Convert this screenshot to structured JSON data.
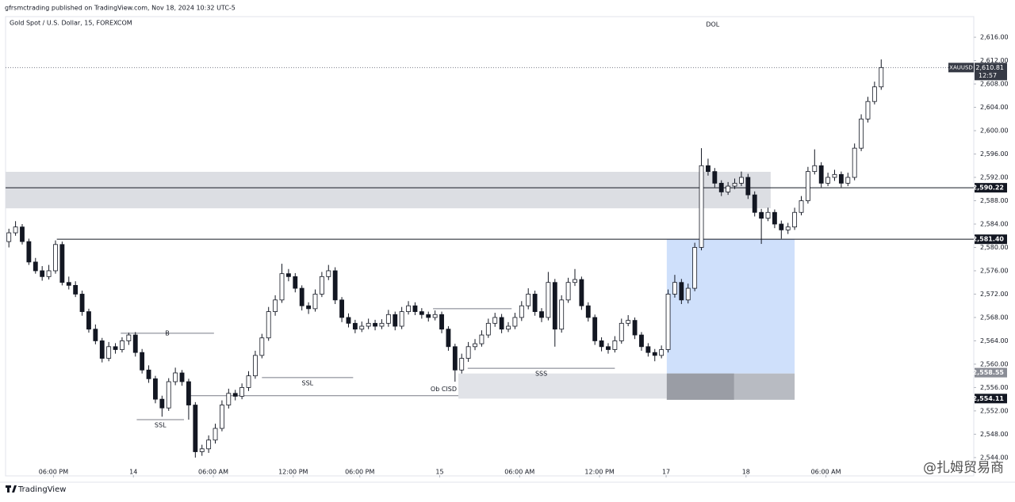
{
  "chart_data": {
    "type": "candlestick",
    "header": "gfrsmctrading published on TradingView.com, Nov 18, 2024 10:32 UTC-5",
    "title": "Gold Spot / U.S. Dollar, 15, FOREXCOM",
    "footer_brand": "TradingView",
    "watermark": "@扎姆贸易商",
    "up_color": "#ffffff",
    "down_color": "#131722",
    "wick_color": "#131722",
    "x": [
      0,
      1,
      2,
      3,
      4,
      5,
      6,
      7,
      8,
      9,
      10,
      11,
      12,
      13,
      14,
      15,
      16,
      17,
      18,
      19,
      20,
      21,
      22,
      23,
      24,
      25,
      26,
      27,
      28,
      29,
      30,
      31,
      32,
      33,
      34,
      35,
      36,
      37,
      38,
      39,
      40,
      41,
      42,
      43,
      44,
      45,
      46,
      47,
      48,
      49,
      50,
      51,
      52,
      53,
      54,
      55,
      56,
      57,
      58,
      59,
      60,
      61,
      62,
      63,
      64,
      65,
      66,
      67,
      68,
      69,
      70,
      71,
      72,
      73,
      74,
      75,
      76,
      77,
      78,
      79,
      80,
      81,
      82,
      83,
      84,
      85,
      86,
      87,
      88,
      89,
      90,
      91,
      92,
      93,
      94,
      95,
      96,
      97,
      98,
      99,
      100,
      101,
      102,
      103,
      104,
      105,
      106,
      107,
      108,
      109,
      110,
      111,
      112,
      113,
      114,
      115,
      116,
      117,
      118,
      119,
      120,
      121,
      122,
      123,
      124,
      125,
      126,
      127,
      128,
      129,
      130,
      131
    ],
    "candles": [
      [
        2581,
        2583.2,
        2580,
        2582.5
      ],
      [
        2582.5,
        2584.5,
        2582,
        2583.5
      ],
      [
        2583.5,
        2584,
        2580.5,
        2581
      ],
      [
        2581,
        2581.5,
        2577,
        2577.5
      ],
      [
        2577.5,
        2578.2,
        2575.5,
        2576
      ],
      [
        2576,
        2576.8,
        2574.3,
        2575
      ],
      [
        2575,
        2577,
        2574.5,
        2576
      ],
      [
        2576,
        2581.2,
        2575.5,
        2580.5
      ],
      [
        2580.5,
        2581,
        2573.5,
        2574
      ],
      [
        2574,
        2575,
        2572.8,
        2573.5
      ],
      [
        2573.5,
        2574.2,
        2571.5,
        2572
      ],
      [
        2572,
        2572.6,
        2568.3,
        2569
      ],
      [
        2569,
        2569.5,
        2565.4,
        2566
      ],
      [
        2566,
        2566.8,
        2563.4,
        2564
      ],
      [
        2564,
        2564.5,
        2560.3,
        2561
      ],
      [
        2561,
        2563.8,
        2560.5,
        2563
      ],
      [
        2563,
        2563.6,
        2561.8,
        2562.5
      ],
      [
        2562.5,
        2564.6,
        2562,
        2564
      ],
      [
        2564,
        2565.4,
        2563.3,
        2565
      ],
      [
        2565,
        2565.5,
        2561.3,
        2562
      ],
      [
        2562,
        2562.6,
        2558.4,
        2559
      ],
      [
        2559,
        2559.8,
        2556.8,
        2557.5
      ],
      [
        2557.5,
        2558,
        2553.3,
        2554
      ],
      [
        2554,
        2554.6,
        2551,
        2552.5
      ],
      [
        2552.5,
        2557.6,
        2552,
        2557
      ],
      [
        2557,
        2559.4,
        2556.4,
        2558.5
      ],
      [
        2558.5,
        2559,
        2556.3,
        2557
      ],
      [
        2557,
        2557.5,
        2550.5,
        2553
      ],
      [
        2553,
        2553.5,
        2544,
        2545
      ],
      [
        2545,
        2546.2,
        2544.3,
        2545.5
      ],
      [
        2545.5,
        2547.8,
        2544.8,
        2547
      ],
      [
        2547,
        2549.8,
        2546.4,
        2549
      ],
      [
        2549,
        2553.8,
        2548.5,
        2553
      ],
      [
        2553,
        2555.8,
        2552.4,
        2555
      ],
      [
        2555,
        2555.6,
        2553.8,
        2554.5
      ],
      [
        2554.5,
        2556.7,
        2554,
        2556
      ],
      [
        2556,
        2558.8,
        2555.4,
        2558
      ],
      [
        2558,
        2562.3,
        2557.5,
        2561.5
      ],
      [
        2561.5,
        2565.2,
        2561,
        2564.5
      ],
      [
        2564.5,
        2569.8,
        2564,
        2569
      ],
      [
        2569,
        2571.8,
        2568.3,
        2571
      ],
      [
        2571,
        2577.2,
        2570.5,
        2575.5
      ],
      [
        2575.5,
        2576.3,
        2574.2,
        2575
      ],
      [
        2575,
        2575.6,
        2572.3,
        2573
      ],
      [
        2573,
        2573.5,
        2569.2,
        2570
      ],
      [
        2570,
        2570.6,
        2568.6,
        2569.5
      ],
      [
        2569.5,
        2572.8,
        2569,
        2572
      ],
      [
        2572,
        2575.8,
        2571.5,
        2575
      ],
      [
        2575,
        2577,
        2574.4,
        2576
      ],
      [
        2576,
        2576.6,
        2570.3,
        2571
      ],
      [
        2571,
        2571.5,
        2567.2,
        2568
      ],
      [
        2568,
        2568.7,
        2566.3,
        2567
      ],
      [
        2567,
        2567.6,
        2565.3,
        2566
      ],
      [
        2566,
        2567.3,
        2565.5,
        2566.5
      ],
      [
        2566.5,
        2567.8,
        2566,
        2567
      ],
      [
        2567,
        2567.6,
        2565.8,
        2566.5
      ],
      [
        2566.5,
        2567.7,
        2566,
        2567
      ],
      [
        2567,
        2569.3,
        2566.4,
        2568.5
      ],
      [
        2568.5,
        2569,
        2565.8,
        2566.5
      ],
      [
        2566.5,
        2569.8,
        2566,
        2569
      ],
      [
        2569,
        2570.8,
        2568.5,
        2570
      ],
      [
        2570,
        2570.6,
        2568.4,
        2569
      ],
      [
        2569,
        2569.6,
        2567.8,
        2568.5
      ],
      [
        2568.5,
        2569,
        2567.3,
        2568
      ],
      [
        2568,
        2569.2,
        2567.5,
        2568.5
      ],
      [
        2568.5,
        2569,
        2565.3,
        2566
      ],
      [
        2566,
        2566.5,
        2562.3,
        2563
      ],
      [
        2563,
        2563.5,
        2557,
        2559
      ],
      [
        2559,
        2561.8,
        2558.4,
        2561
      ],
      [
        2561,
        2563.8,
        2560.4,
        2563
      ],
      [
        2563,
        2564.3,
        2562.4,
        2563.5
      ],
      [
        2563.5,
        2565.8,
        2563,
        2565
      ],
      [
        2565,
        2567.8,
        2564.5,
        2567
      ],
      [
        2567,
        2568.8,
        2566.4,
        2568
      ],
      [
        2568,
        2568.6,
        2565.3,
        2566
      ],
      [
        2566,
        2567.2,
        2565.5,
        2566.5
      ],
      [
        2566.5,
        2568.8,
        2566,
        2568
      ],
      [
        2568,
        2570.8,
        2567.4,
        2570
      ],
      [
        2570,
        2573,
        2569.4,
        2572
      ],
      [
        2572,
        2572.6,
        2568.3,
        2569
      ],
      [
        2569,
        2569.6,
        2567.2,
        2568
      ],
      [
        2568,
        2575.8,
        2567.5,
        2574
      ],
      [
        2574,
        2574.6,
        2563,
        2566
      ],
      [
        2566,
        2571.8,
        2565.4,
        2571
      ],
      [
        2571,
        2574.8,
        2570.5,
        2574
      ],
      [
        2574,
        2576.3,
        2573.4,
        2574.5
      ],
      [
        2574.5,
        2575,
        2569.3,
        2570
      ],
      [
        2570,
        2570.6,
        2567.3,
        2568
      ],
      [
        2568,
        2568.5,
        2563.3,
        2564
      ],
      [
        2564,
        2564.6,
        2562.2,
        2563
      ],
      [
        2563,
        2563.6,
        2561.8,
        2562.5
      ],
      [
        2562.5,
        2564.8,
        2562,
        2564
      ],
      [
        2564,
        2567.8,
        2563.5,
        2567
      ],
      [
        2567,
        2568.4,
        2566.5,
        2567.5
      ],
      [
        2567.5,
        2568,
        2564.3,
        2565
      ],
      [
        2565,
        2565.5,
        2562.3,
        2563
      ],
      [
        2563,
        2563.6,
        2561.3,
        2562
      ],
      [
        2562,
        2562.6,
        2560.5,
        2561.5
      ],
      [
        2561.5,
        2563.2,
        2561,
        2562.5
      ],
      [
        2562.5,
        2572.8,
        2562,
        2572
      ],
      [
        2572,
        2575.3,
        2571.4,
        2574
      ],
      [
        2574,
        2574.6,
        2570.3,
        2571
      ],
      [
        2571,
        2573.8,
        2570.4,
        2573
      ],
      [
        2573,
        2580.8,
        2572.5,
        2580
      ],
      [
        2580,
        2597,
        2579.5,
        2594
      ],
      [
        2594,
        2595.2,
        2592.3,
        2593
      ],
      [
        2593,
        2593.6,
        2590.3,
        2591
      ],
      [
        2591,
        2591.5,
        2588.8,
        2589.5
      ],
      [
        2589.5,
        2591.2,
        2589,
        2590.5
      ],
      [
        2590.5,
        2591.8,
        2590,
        2591
      ],
      [
        2591,
        2593,
        2590.5,
        2592
      ],
      [
        2592,
        2592.6,
        2588.3,
        2589
      ],
      [
        2589,
        2589.6,
        2585.3,
        2586
      ],
      [
        2586,
        2586.6,
        2580.6,
        2585
      ],
      [
        2585,
        2586.8,
        2584.5,
        2586
      ],
      [
        2586,
        2586.5,
        2583.3,
        2584
      ],
      [
        2584,
        2584.6,
        2581.5,
        2583
      ],
      [
        2583,
        2584.2,
        2582.3,
        2583.5
      ],
      [
        2583.5,
        2586.8,
        2583,
        2586
      ],
      [
        2586,
        2588.8,
        2585.5,
        2588
      ],
      [
        2588,
        2593.8,
        2587.5,
        2593
      ],
      [
        2593,
        2596.8,
        2592.5,
        2594
      ],
      [
        2594,
        2594.6,
        2590.3,
        2591
      ],
      [
        2591,
        2592.8,
        2590.5,
        2592
      ],
      [
        2592,
        2593.3,
        2591.4,
        2592.5
      ],
      [
        2592.5,
        2593,
        2590.3,
        2591
      ],
      [
        2591,
        2592.8,
        2590.5,
        2592
      ],
      [
        2592,
        2597.8,
        2591.5,
        2597
      ],
      [
        2597,
        2602.8,
        2596.5,
        2602
      ],
      [
        2602,
        2605.8,
        2601.4,
        2605
      ],
      [
        2605,
        2608.4,
        2604.5,
        2607.5
      ],
      [
        2607.5,
        2612.2,
        2607,
        2610.81
      ]
    ],
    "xlim": [
      -0.5,
      144.9
    ],
    "xticks": [
      {
        "value": 6.7,
        "label": "06:00 PM"
      },
      {
        "value": 18.7,
        "label": "14"
      },
      {
        "value": 30.7,
        "label": "06:00 AM"
      },
      {
        "value": 42.7,
        "label": "12:00 PM"
      },
      {
        "value": 52.7,
        "label": "06:00 PM"
      },
      {
        "value": 64.7,
        "label": "15"
      },
      {
        "value": 76.7,
        "label": "06:00 AM"
      },
      {
        "value": 88.7,
        "label": "12:00 PM"
      },
      {
        "value": 98.7,
        "label": "17"
      },
      {
        "value": 110.7,
        "label": "18"
      },
      {
        "value": 122.7,
        "label": "06:00 AM"
      }
    ],
    "ylim": [
      2541.0,
      2619.4
    ],
    "yticks": [
      {
        "value": 2544,
        "label": "2,544.00"
      },
      {
        "value": 2548,
        "label": "2,548.00"
      },
      {
        "value": 2552,
        "label": "2,552.00"
      },
      {
        "value": 2556,
        "label": "2,556.00"
      },
      {
        "value": 2560,
        "label": "2,560.00"
      },
      {
        "value": 2564,
        "label": "2,564.00"
      },
      {
        "value": 2568,
        "label": "2,568.00"
      },
      {
        "value": 2572,
        "label": "2,572.00"
      },
      {
        "value": 2576,
        "label": "2,576.00"
      },
      {
        "value": 2580,
        "label": "2,580.00"
      },
      {
        "value": 2584,
        "label": "2,584.00"
      },
      {
        "value": 2588,
        "label": "2,588.00"
      },
      {
        "value": 2592,
        "label": "2,592.00"
      },
      {
        "value": 2596,
        "label": "2,596.00"
      },
      {
        "value": 2600,
        "label": "2,600.00"
      },
      {
        "value": 2604,
        "label": "2,604.00"
      },
      {
        "value": 2608,
        "label": "2,608.00"
      },
      {
        "value": 2612,
        "label": "2,612.00"
      },
      {
        "value": 2616,
        "label": "2,616.00"
      }
    ],
    "zones": [
      {
        "from": -0.5,
        "to": 114.4,
        "low": 2586.7,
        "high": 2592.95,
        "color": "#dcdee3"
      },
      {
        "from": 67.5,
        "to": 98.8,
        "low": 2554.1,
        "high": 2558.4,
        "color": "#e1e3e8"
      },
      {
        "from": 98.8,
        "to": 118,
        "low": 2558.4,
        "high": 2581.4,
        "color": "#cfe0fb"
      },
      {
        "from": 98.8,
        "to": 118,
        "low": 2553.9,
        "high": 2558.4,
        "color": "#b8bbc2"
      },
      {
        "from": 98.8,
        "to": 108.9,
        "low": 2553.9,
        "high": 2558.4,
        "color": "#9a9da5"
      }
    ],
    "levels": [
      {
        "from": -0.5,
        "value": 2590.22,
        "label": "2,590.22"
      },
      {
        "from": 7.2,
        "value": 2581.4,
        "label": "2,581.40"
      }
    ],
    "price_labels": [
      {
        "value": 2558.55,
        "label": "2,558.55",
        "color": "#8a8d96"
      },
      {
        "value": 2554.11,
        "label": "2,554.11",
        "color": "#131722"
      }
    ],
    "last_price": {
      "value": 2610.81,
      "label": "2,610.81",
      "symbol": "XAUUSD",
      "countdown": "12:57"
    },
    "annotations": [
      {
        "text": "B",
        "from": 16.8,
        "to": 30.8,
        "value": 2565.3,
        "place": "above"
      },
      {
        "text": "SSL",
        "from": 19.2,
        "to": 26.3,
        "value": 2550.5,
        "place": "below"
      },
      {
        "text": "SSL",
        "from": 38,
        "to": 51.7,
        "value": 2557.7,
        "place": "below"
      },
      {
        "text": "SSS",
        "from": 68.9,
        "to": 91,
        "value": 2559.3,
        "place": "below"
      },
      {
        "text": "Ob CISD",
        "from": 27.3,
        "to": 67.5,
        "value": 2554.6,
        "place": "end"
      },
      {
        "text": "DOL",
        "from": 105.7,
        "to": 105.7,
        "value": 2618.2,
        "place": "text"
      }
    ],
    "segments": [
      {
        "from": 63.7,
        "to": 75.5,
        "value": 2569.5
      }
    ]
  }
}
